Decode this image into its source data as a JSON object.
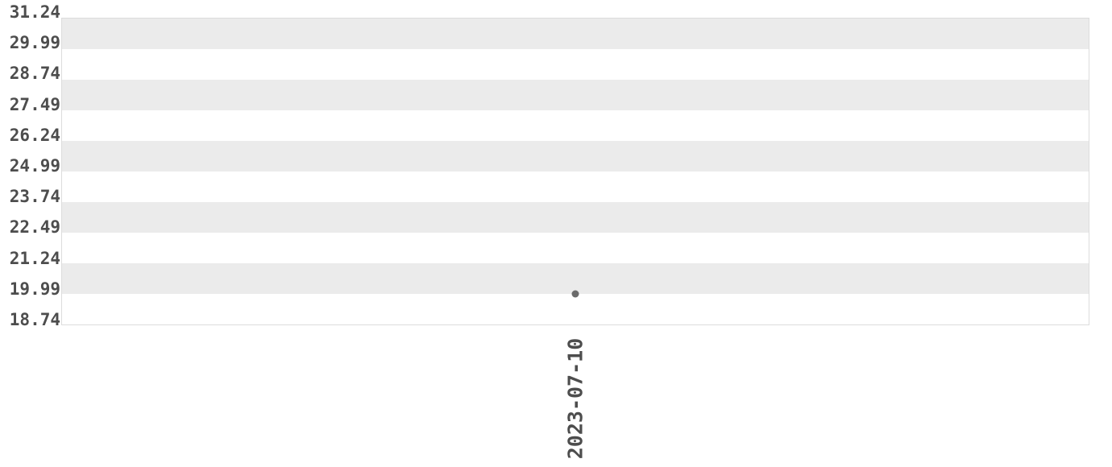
{
  "chart_data": {
    "type": "scatter",
    "title": "",
    "xlabel": "",
    "ylabel": "",
    "categories": [
      "2023-07-10"
    ],
    "series": [
      {
        "name": "value",
        "values": [
          19.99
        ]
      }
    ],
    "point": {
      "category": "2023-07-10",
      "value": 19.99
    },
    "x_axis": {
      "tick_labels": [
        "2023-07-10"
      ],
      "label_rotation_deg": 90
    },
    "y_axis": {
      "tick_labels_top_to_bottom": [
        "31.24",
        "29.99",
        "28.74",
        "27.49",
        "26.24",
        "24.99",
        "23.74",
        "22.49",
        "21.24",
        "19.99",
        "18.74"
      ],
      "range": [
        18.74,
        31.24
      ],
      "tick_step": 1.25
    },
    "grid": {
      "style": "alternating-horizontal-bands",
      "first_band_from_top": "gray"
    },
    "legend": "none",
    "colors": {
      "background": "#ffffff",
      "band_gray": "#ebebeb",
      "band_white": "#ffffff",
      "plot_border": "#dcdcdc",
      "tick_text": "#4d4d4d",
      "point": "#6b6b6b"
    }
  }
}
